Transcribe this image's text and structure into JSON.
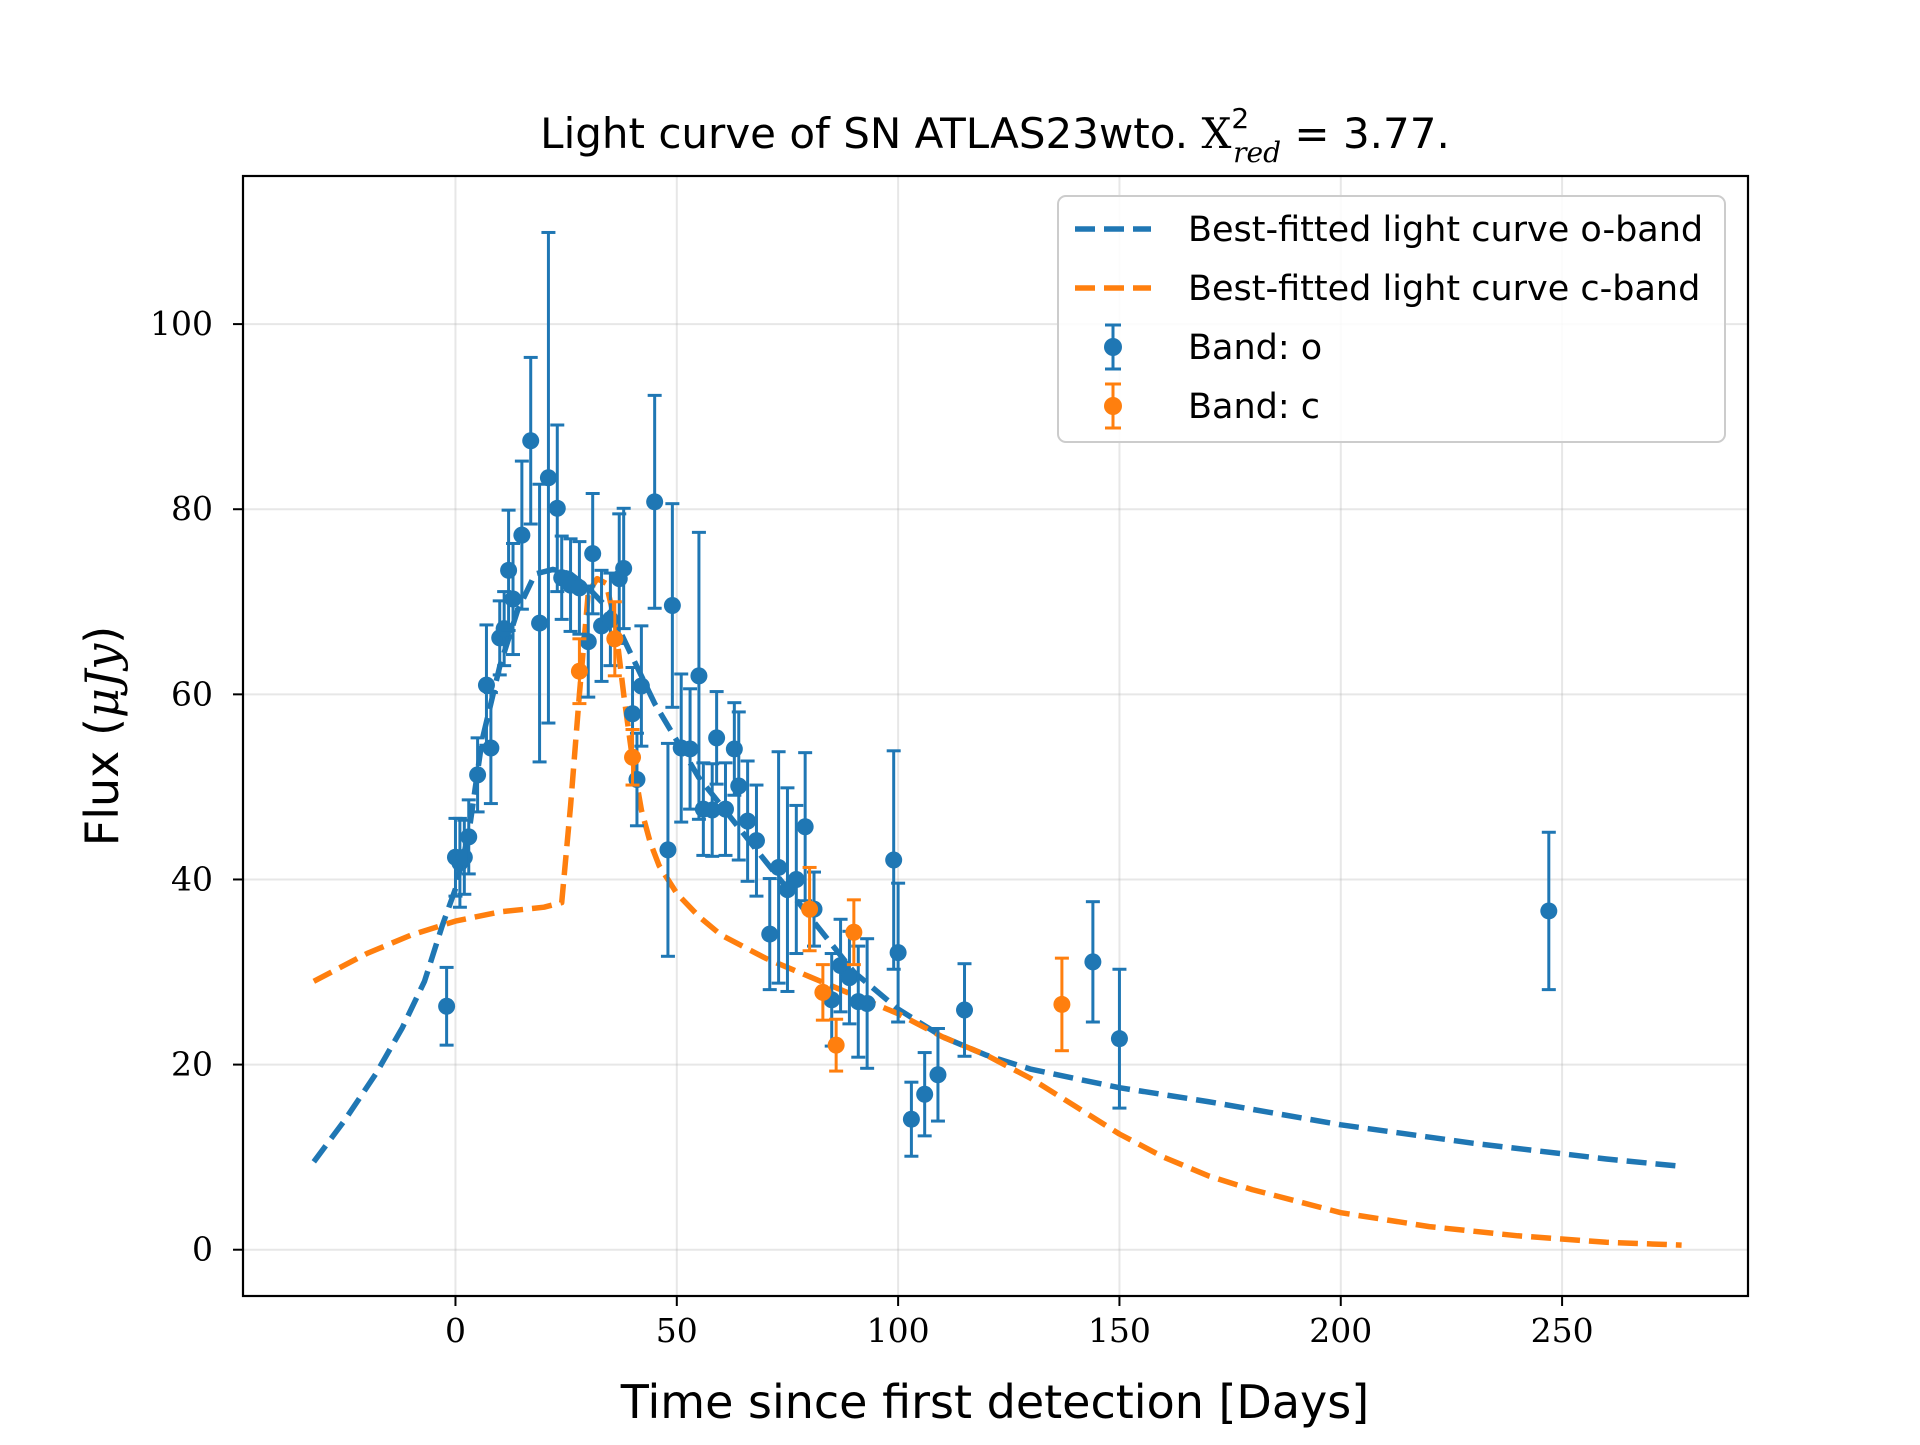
{
  "chart_data": {
    "type": "scatter",
    "title": "Light curve of SN ATLAS23wto. X²red = 3.77.",
    "title_parts": {
      "prefix": "Light curve of SN ATLAS23wto. ",
      "symbol": "X",
      "superscript": "2",
      "subscript": "red",
      "suffix": " = 3.77."
    },
    "xlabel": "Time since first detection [Days]",
    "ylabel": "Flux (μJy)",
    "ylabel_parts": {
      "prefix": "Flux (",
      "unit": "μJy",
      "suffix": ")"
    },
    "xlim": [
      -48,
      292
    ],
    "ylim": [
      -5,
      116
    ],
    "xticks": [
      0,
      50,
      100,
      150,
      200,
      250
    ],
    "yticks": [
      0,
      20,
      40,
      60,
      80,
      100
    ],
    "grid": true,
    "legend_position": "top-right",
    "legend": [
      {
        "label": "Best-fitted light curve o-band",
        "kind": "line",
        "color": "#1f77b4"
      },
      {
        "label": "Best-fitted light curve c-band",
        "kind": "line",
        "color": "#ff7f0e"
      },
      {
        "label": "Band: o",
        "kind": "errorbar",
        "color": "#1f77b4"
      },
      {
        "label": "Band: c",
        "kind": "errorbar",
        "color": "#ff7f0e"
      }
    ],
    "series": [
      {
        "name": "Best-fitted light curve o-band",
        "kind": "line",
        "style": "dashed",
        "color": "#1f77b4",
        "x": [
          -32,
          -25,
          -18,
          -12,
          -7,
          -3,
          0,
          3,
          6,
          10,
          14,
          18,
          22,
          26,
          30,
          35,
          40,
          45,
          50,
          55,
          60,
          65,
          70,
          75,
          80,
          85,
          90,
          100,
          110,
          120,
          130,
          140,
          150,
          170,
          200,
          230,
          260,
          277
        ],
        "y": [
          9.5,
          14,
          19,
          24,
          29,
          35,
          39,
          45,
          55,
          63,
          69,
          73,
          73.5,
          73,
          71.5,
          69,
          64,
          59,
          55,
          51,
          48,
          45,
          42,
          39,
          36,
          33,
          30,
          26,
          23,
          21,
          19.5,
          18.5,
          17.5,
          16,
          13.5,
          11.5,
          9.8,
          9
        ]
      },
      {
        "name": "Best-fitted light curve c-band",
        "kind": "line",
        "style": "dashed",
        "color": "#ff7f0e",
        "x": [
          -32,
          -20,
          -10,
          0,
          10,
          20,
          24,
          26,
          28,
          30,
          32,
          34,
          36,
          38,
          40,
          42,
          44,
          46,
          50,
          55,
          60,
          70,
          80,
          90,
          100,
          110,
          120,
          130,
          140,
          150,
          160,
          170,
          180,
          200,
          220,
          240,
          260,
          277
        ],
        "y": [
          29,
          32,
          34,
          35.5,
          36.5,
          37,
          37.5,
          48,
          60,
          71,
          72.5,
          72,
          68,
          60,
          53,
          47.5,
          44,
          41.5,
          38.5,
          36,
          34,
          31.5,
          29.5,
          27.5,
          25.5,
          23,
          21,
          18.5,
          15.5,
          12.5,
          10,
          8,
          6.5,
          4,
          2.5,
          1.5,
          0.8,
          0.5
        ]
      },
      {
        "name": "Band: o",
        "kind": "errorbar",
        "color": "#1f77b4",
        "x": [
          -2,
          0,
          1,
          2,
          3,
          5,
          7,
          8,
          10,
          11,
          12,
          13,
          15,
          17,
          19,
          21,
          23,
          24,
          26,
          28,
          30,
          31,
          33,
          35,
          37,
          38,
          40,
          41,
          42,
          45,
          48,
          49,
          51,
          53,
          55,
          56,
          58,
          59,
          61,
          63,
          64,
          66,
          68,
          71,
          73,
          75,
          77,
          79,
          81,
          85,
          87,
          89,
          91,
          93,
          99,
          100,
          103,
          106,
          109,
          115,
          144,
          150,
          247
        ],
        "y": [
          26.3,
          42.4,
          41.8,
          42.4,
          44.6,
          51.3,
          61,
          54.2,
          66.1,
          67.1,
          73.4,
          70.3,
          77.2,
          87.4,
          67.7,
          83.4,
          80.1,
          72.6,
          71.8,
          71.5,
          65.7,
          75.2,
          67.4,
          68.1,
          72.5,
          73.6,
          57.9,
          50.8,
          60.9,
          80.8,
          43.2,
          69.6,
          54.2,
          54.1,
          62,
          47.6,
          47.5,
          55.3,
          47.6,
          54.1,
          50.1,
          46.3,
          44.2,
          34.1,
          41.3,
          38.9,
          40,
          45.7,
          36.8,
          27,
          30.7,
          29.4,
          26.8,
          26.6,
          42.1,
          32.1,
          14.1,
          16.8,
          18.9,
          25.9,
          31.1,
          22.8,
          36.6
        ],
        "yerr": [
          4.2,
          4.2,
          4.8,
          4,
          4,
          4,
          6.5,
          6,
          4,
          4,
          6.5,
          6,
          8,
          9,
          15,
          26.5,
          9,
          4.5,
          5,
          5,
          6,
          6.5,
          6,
          5,
          7,
          6.5,
          5,
          5,
          6.5,
          11.5,
          11.5,
          11,
          8,
          6.5,
          15.5,
          5,
          5,
          5,
          5,
          5,
          8,
          6.5,
          6,
          6,
          12.5,
          11,
          8,
          8,
          4,
          5,
          5,
          5,
          6,
          7,
          11.8,
          7.5,
          4,
          4.5,
          5,
          5,
          6.5,
          7.5,
          8.5
        ]
      },
      {
        "name": "Band: c",
        "kind": "errorbar",
        "color": "#ff7f0e",
        "x": [
          28,
          36,
          40,
          80,
          83,
          86,
          90,
          137
        ],
        "y": [
          62.5,
          66,
          53.2,
          36.8,
          27.8,
          22.1,
          34.3,
          26.5
        ],
        "yerr": [
          3.5,
          4,
          3,
          4.5,
          3,
          2.8,
          3.5,
          5
        ]
      }
    ]
  }
}
